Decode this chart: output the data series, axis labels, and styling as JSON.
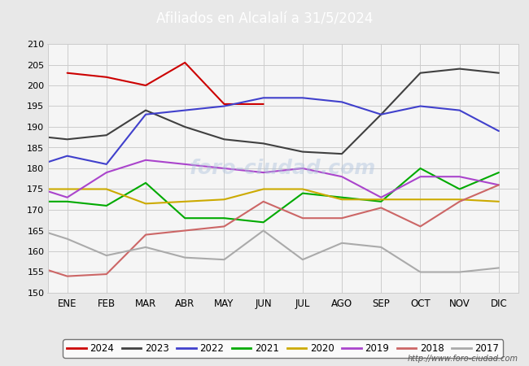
{
  "title": "Afiliados en Alcalalí a 31/5/2024",
  "title_bg_color": "#4f81bd",
  "title_text_color": "#ffffff",
  "ylim": [
    150,
    210
  ],
  "yticks": [
    150,
    155,
    160,
    165,
    170,
    175,
    180,
    185,
    190,
    195,
    200,
    205,
    210
  ],
  "months": [
    "ENE",
    "FEB",
    "MAR",
    "ABR",
    "MAY",
    "JUN",
    "JUL",
    "AGO",
    "SEP",
    "OCT",
    "NOV",
    "DIC"
  ],
  "url": "http://www.foro-ciudad.com",
  "series": {
    "2024": {
      "color": "#cc0000",
      "data": [
        203,
        202,
        200,
        205.5,
        195.5,
        195.5,
        null,
        null,
        null,
        null,
        null,
        null
      ]
    },
    "2023": {
      "color": "#404040",
      "data": [
        188,
        187,
        188,
        194,
        190,
        187,
        186,
        184,
        183.5,
        193,
        203,
        204,
        203
      ]
    },
    "2022": {
      "color": "#4040cc",
      "data": [
        180,
        183,
        181,
        193,
        194,
        195,
        197,
        197,
        196,
        193,
        195,
        194,
        189
      ]
    },
    "2021": {
      "color": "#00aa00",
      "data": [
        172,
        172,
        171,
        176.5,
        168,
        168,
        167,
        174,
        173,
        172,
        180,
        175,
        179
      ]
    },
    "2020": {
      "color": "#ccaa00",
      "data": [
        175,
        175,
        175,
        171.5,
        172,
        172.5,
        175,
        175,
        172.5,
        172.5,
        172.5,
        172.5,
        172
      ]
    },
    "2019": {
      "color": "#aa44cc",
      "data": [
        176,
        173,
        179,
        182,
        181,
        180,
        179,
        180,
        178,
        173,
        178,
        178,
        176
      ]
    },
    "2018": {
      "color": "#cc6666",
      "data": [
        157,
        154,
        154.5,
        164,
        165,
        166,
        172,
        168,
        168,
        170.5,
        166,
        172,
        176
      ]
    },
    "2017": {
      "color": "#aaaaaa",
      "data": [
        166,
        163,
        159,
        161,
        158.5,
        158,
        165,
        158,
        162,
        161,
        155,
        155,
        156
      ]
    }
  },
  "legend_order": [
    "2024",
    "2023",
    "2022",
    "2021",
    "2020",
    "2019",
    "2018",
    "2017"
  ],
  "fig_bg_color": "#e8e8e8",
  "plot_bg_color": "#f5f5f5",
  "grid_color": "#cccccc"
}
